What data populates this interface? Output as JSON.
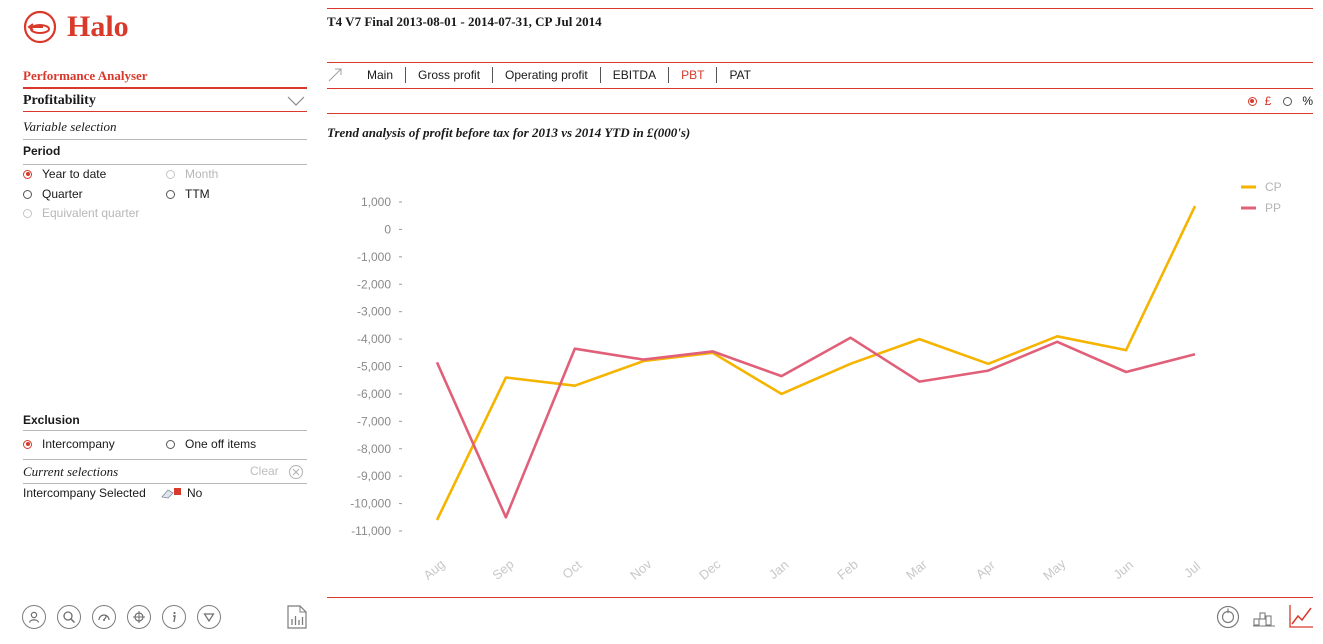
{
  "app": {
    "logo_text": "Halo"
  },
  "sidebar": {
    "title": "Performance Analyser",
    "section": "Profitability",
    "variable_selection": "Variable selection",
    "period": {
      "label": "Period",
      "options": [
        {
          "label": "Year to date",
          "selected": true,
          "disabled": false
        },
        {
          "label": "Month",
          "selected": false,
          "disabled": true
        },
        {
          "label": "Quarter",
          "selected": false,
          "disabled": false
        },
        {
          "label": "TTM",
          "selected": false,
          "disabled": false
        },
        {
          "label": "Equivalent quarter",
          "selected": false,
          "disabled": true
        }
      ]
    },
    "exclusion": {
      "label": "Exclusion",
      "options": [
        {
          "label": "Intercompany",
          "selected": true
        },
        {
          "label": "One off items",
          "selected": false
        }
      ]
    },
    "current_selections": {
      "label": "Current selections",
      "clear_label": "Clear",
      "items": [
        {
          "field": "Intercompany Selected",
          "value": "No"
        }
      ]
    },
    "footer_icons": [
      "user-icon",
      "search-icon",
      "dashboard-icon",
      "target-icon",
      "info-icon",
      "filter-icon",
      "report-icon"
    ]
  },
  "header": {
    "title": "T4 V7 Final 2013-08-01 - 2014-07-31, CP Jul 2014"
  },
  "tabs": [
    {
      "label": "Main",
      "active": false
    },
    {
      "label": "Gross profit",
      "active": false
    },
    {
      "label": "Operating profit",
      "active": false
    },
    {
      "label": "EBITDA",
      "active": false
    },
    {
      "label": "PBT",
      "active": true
    },
    {
      "label": "PAT",
      "active": false
    }
  ],
  "unit_toggle": {
    "pound_label": "£",
    "percent_label": "%",
    "selected": "£"
  },
  "chart_title": "Trend analysis of profit before tax for 2013 vs 2014 YTD in £(000's)",
  "colors": {
    "accent": "#d8392b",
    "cp": "#f5b400",
    "pp": "#e0607a"
  },
  "bottom_icons": [
    "cycle-icon",
    "waterfall-icon",
    "line-chart-icon"
  ],
  "chart_data": {
    "type": "line",
    "categories": [
      "Aug",
      "Sep",
      "Oct",
      "Nov",
      "Dec",
      "Jan",
      "Feb",
      "Mar",
      "Apr",
      "May",
      "Jun",
      "Jul"
    ],
    "series": [
      {
        "name": "CP",
        "values": [
          -10600,
          -5400,
          -5700,
          -4800,
          -4500,
          -6000,
          -4900,
          -4000,
          -4900,
          -3900,
          -4400,
          850
        ]
      },
      {
        "name": "PP",
        "values": [
          -4850,
          -10500,
          -4350,
          -4750,
          -4450,
          -5350,
          -3950,
          -5550,
          -5150,
          -4100,
          -5200,
          -4550
        ]
      }
    ],
    "y_ticks": [
      "1,000",
      "0",
      "-1,000",
      "-2,000",
      "-3,000",
      "-4,000",
      "-5,000",
      "-6,000",
      "-7,000",
      "-8,000",
      "-9,000",
      "-10,000",
      "-11,000"
    ],
    "ylim": [
      -11000,
      1000
    ],
    "legend": "top-right",
    "grid": false
  }
}
